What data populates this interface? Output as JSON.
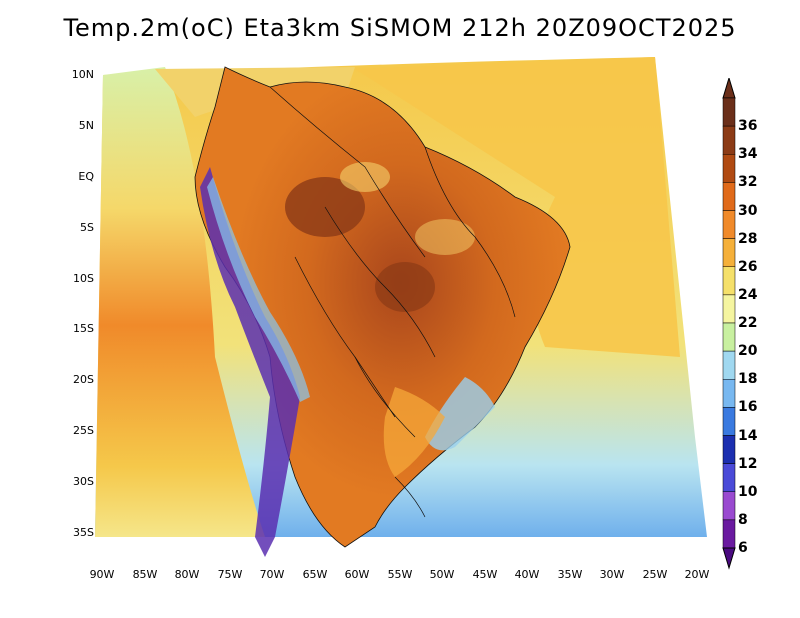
{
  "title": "Temp.2m(oC) Eta3km SiSMOM 212h 20Z09OCT2025",
  "latitude_labels": [
    "10N",
    "5N",
    "EQ",
    "5S",
    "10S",
    "15S",
    "20S",
    "25S",
    "30S",
    "35S"
  ],
  "longitude_labels": [
    "90W",
    "85W",
    "80W",
    "75W",
    "70W",
    "65W",
    "60W",
    "55W",
    "50W",
    "45W",
    "40W",
    "35W",
    "30W",
    "25W",
    "20W"
  ],
  "legend": {
    "values": [
      "36",
      "34",
      "32",
      "30",
      "28",
      "26",
      "24",
      "22",
      "20",
      "18",
      "16",
      "14",
      "12",
      "10",
      "8",
      "6"
    ],
    "colors": [
      "#6b2f1a",
      "#8c3b16",
      "#b04a12",
      "#e06a1a",
      "#f08a2a",
      "#f5b03a",
      "#f5e06a",
      "#f5f5a0",
      "#c8f0a0",
      "#a0d8f0",
      "#78b8f0",
      "#3a7ae0",
      "#1c2fb0",
      "#4a4ad8",
      "#9a4ad0",
      "#6a1aa0"
    ],
    "top_color": "#6b2f1a",
    "bottom_color": "#4a0a80"
  }
}
